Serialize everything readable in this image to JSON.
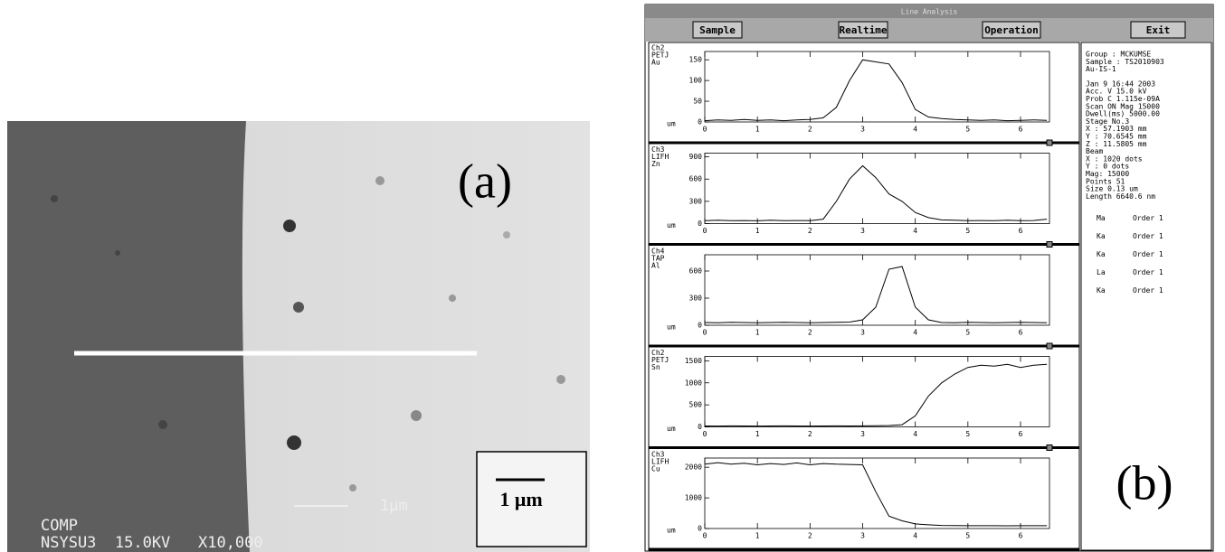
{
  "panel_a": {
    "label": "(a)",
    "sem_line1": "COMP",
    "sem_line2": "NSYSU3  15.0KV   X10,000",
    "sem_scale": "1μm",
    "scale_label": "1 μm"
  },
  "panel_b": {
    "label": "(b)",
    "window_title": "Line Analysis",
    "buttons": [
      "Sample",
      "Realtime",
      "Operation",
      "Exit"
    ],
    "info": [
      [
        "Group  : MCKUMSE",
        "Sample : TS2010903",
        "Au-IS-1"
      ],
      [
        "Jan 9 16:44 2003",
        "Acc. V     15.0 kV",
        "Prob C  1.115e-09A",
        "Scan ON  Mag 15000",
        "Dwell(ms) 5000.00",
        "Stage No.3",
        "  X : 57.1903 mm",
        "  Y : 70.6545 mm",
        "  Z : 11.5805 mm",
        "Beam",
        "  X :   1020 dots",
        "  Y :      0 dots",
        "  Mag: 15000",
        "Points        51",
        "Size      0.13 um",
        "Length  6640.6 nm"
      ]
    ],
    "orders": [
      [
        "Ma",
        "Order 1"
      ],
      [
        "Ka",
        "Order 1"
      ],
      [
        "Ka",
        "Order 1"
      ],
      [
        "La",
        "Order 1"
      ],
      [
        "Ka",
        "Order 1"
      ]
    ]
  },
  "chart_data": [
    {
      "type": "line",
      "channel": [
        "Ch2",
        "PETJ",
        "Au"
      ],
      "x_label": "um",
      "color": "#000000",
      "x": [
        0,
        0.25,
        0.5,
        0.75,
        1,
        1.25,
        1.5,
        1.75,
        2,
        2.25,
        2.5,
        2.75,
        3,
        3.25,
        3.5,
        3.75,
        4,
        4.25,
        4.5,
        4.75,
        5,
        5.25,
        5.5,
        5.75,
        6,
        6.25,
        6.5
      ],
      "values": [
        3,
        5,
        4,
        6,
        4,
        5,
        3,
        5,
        6,
        10,
        35,
        100,
        150,
        145,
        140,
        95,
        30,
        12,
        8,
        6,
        5,
        4,
        5,
        3,
        4,
        5,
        4
      ],
      "xlim": [
        0,
        6.55
      ],
      "xticks": [
        0,
        1,
        2,
        3,
        4,
        5,
        6
      ],
      "ylim": [
        0,
        170
      ],
      "yticks": [
        0,
        50,
        100,
        150
      ]
    },
    {
      "type": "line",
      "channel": [
        "Ch3",
        "LIFH",
        "Zn"
      ],
      "x_label": "um",
      "color": "#000000",
      "x": [
        0,
        0.25,
        0.5,
        0.75,
        1,
        1.25,
        1.5,
        1.75,
        2,
        2.25,
        2.5,
        2.75,
        3,
        3.25,
        3.5,
        3.75,
        4,
        4.25,
        4.5,
        4.75,
        5,
        5.25,
        5.5,
        5.75,
        6,
        6.25,
        6.5
      ],
      "values": [
        40,
        45,
        40,
        42,
        38,
        45,
        40,
        42,
        40,
        60,
        300,
        600,
        780,
        620,
        400,
        300,
        150,
        80,
        50,
        45,
        40,
        42,
        40,
        45,
        40,
        42,
        60
      ],
      "xlim": [
        0,
        6.55
      ],
      "xticks": [
        0,
        1,
        2,
        3,
        4,
        5,
        6
      ],
      "ylim": [
        0,
        950
      ],
      "yticks": [
        0,
        300,
        600,
        900
      ]
    },
    {
      "type": "line",
      "channel": [
        "Ch4",
        "TAP",
        "Al"
      ],
      "x_label": "um",
      "color": "#000000",
      "x": [
        0,
        0.25,
        0.5,
        0.75,
        1,
        1.25,
        1.5,
        1.75,
        2,
        2.25,
        2.5,
        2.75,
        3,
        3.25,
        3.5,
        3.75,
        4,
        4.25,
        4.5,
        4.75,
        5,
        5.25,
        5.5,
        5.75,
        6,
        6.25,
        6.5
      ],
      "values": [
        30,
        28,
        32,
        30,
        28,
        30,
        32,
        30,
        28,
        30,
        32,
        35,
        60,
        200,
        620,
        650,
        200,
        60,
        30,
        28,
        32,
        30,
        28,
        30,
        32,
        30,
        28
      ],
      "xlim": [
        0,
        6.55
      ],
      "xticks": [
        0,
        1,
        2,
        3,
        4,
        5,
        6
      ],
      "ylim": [
        0,
        780
      ],
      "yticks": [
        0,
        300,
        600
      ]
    },
    {
      "type": "line",
      "channel": [
        "Ch2",
        "PETJ",
        "Sn"
      ],
      "x_label": "um",
      "color": "#000000",
      "x": [
        0,
        0.25,
        0.5,
        0.75,
        1,
        1.25,
        1.5,
        1.75,
        2,
        2.25,
        2.5,
        2.75,
        3,
        3.25,
        3.5,
        3.75,
        4,
        4.25,
        4.5,
        4.75,
        5,
        5.25,
        5.5,
        5.75,
        6,
        6.25,
        6.5
      ],
      "values": [
        20,
        18,
        22,
        20,
        18,
        20,
        22,
        20,
        18,
        20,
        22,
        20,
        22,
        25,
        30,
        50,
        250,
        700,
        1000,
        1200,
        1350,
        1400,
        1380,
        1420,
        1350,
        1400,
        1420
      ],
      "xlim": [
        0,
        6.55
      ],
      "xticks": [
        0,
        1,
        2,
        3,
        4,
        5,
        6
      ],
      "ylim": [
        0,
        1600
      ],
      "yticks": [
        0,
        500,
        1000,
        1500
      ]
    },
    {
      "type": "line",
      "channel": [
        "Ch3",
        "LIFH",
        "Cu"
      ],
      "x_label": "um",
      "color": "#000000",
      "x": [
        0,
        0.25,
        0.5,
        0.75,
        1,
        1.25,
        1.5,
        1.75,
        2,
        2.25,
        2.5,
        2.75,
        3,
        3.25,
        3.5,
        3.75,
        4,
        4.25,
        4.5,
        4.75,
        5,
        5.25,
        5.5,
        5.75,
        6,
        6.25,
        6.5
      ],
      "values": [
        2100,
        2150,
        2100,
        2130,
        2080,
        2120,
        2090,
        2140,
        2080,
        2120,
        2100,
        2090,
        2080,
        1200,
        400,
        250,
        150,
        120,
        100,
        95,
        90,
        92,
        90,
        88,
        90,
        92,
        90
      ],
      "xlim": [
        0,
        6.55
      ],
      "xticks": [
        0,
        1,
        2,
        3,
        4,
        5,
        6
      ],
      "ylim": [
        0,
        2300
      ],
      "yticks": [
        0,
        1000,
        2000
      ]
    }
  ]
}
